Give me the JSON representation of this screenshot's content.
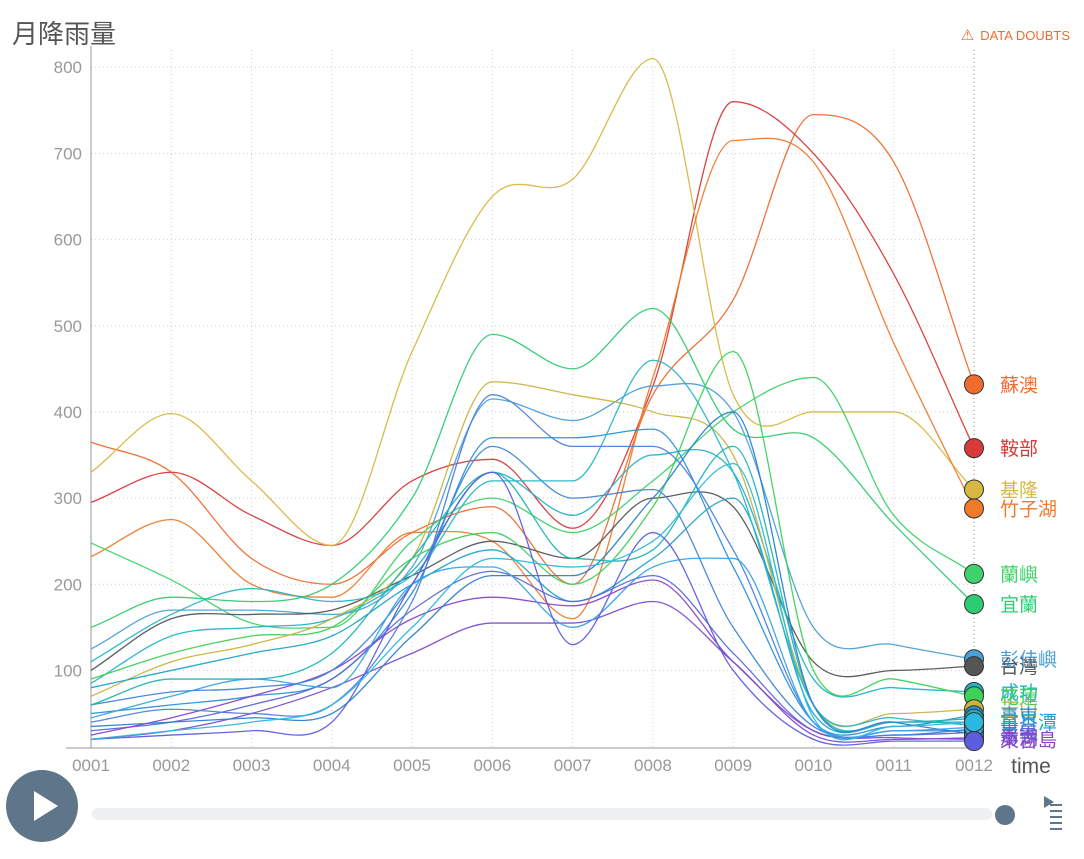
{
  "title": "月降雨量",
  "warning": {
    "label": "DATA DOUBTS",
    "icon": "warning-triangle-icon",
    "color": "#ef6c2f"
  },
  "controls": {
    "play_icon": "play-icon",
    "speed_icon": "speed-control-icon",
    "accent": "#5f758a"
  },
  "chart_data": {
    "type": "line",
    "title": "月降雨量",
    "xlabel": "time",
    "ylabel": "",
    "categories": [
      "0001",
      "0002",
      "0003",
      "0004",
      "0005",
      "0006",
      "0007",
      "0008",
      "0009",
      "0010",
      "0011",
      "0012"
    ],
    "yticks": [
      100,
      200,
      300,
      400,
      500,
      600,
      700,
      800
    ],
    "ylim": [
      10,
      820
    ],
    "grid": true,
    "series": [
      {
        "name": "蘇澳",
        "color": "#ef6c2f",
        "values": [
          365,
          330,
          230,
          200,
          260,
          290,
          200,
          420,
          530,
          745,
          690,
          432
        ]
      },
      {
        "name": "鞍部",
        "color": "#d93a3a",
        "values": [
          295,
          330,
          280,
          245,
          320,
          345,
          265,
          430,
          760,
          700,
          560,
          358
        ]
      },
      {
        "name": "基隆",
        "color": "#d6b842",
        "values": [
          330,
          398,
          320,
          245,
          470,
          650,
          670,
          810,
          420,
          400,
          400,
          310
        ]
      },
      {
        "name": "竹子湖",
        "color": "#ef7a2a",
        "values": [
          232,
          275,
          200,
          185,
          260,
          250,
          160,
          440,
          715,
          690,
          480,
          288
        ]
      },
      {
        "name": "蘭嶼",
        "color": "#3fd16a",
        "values": [
          248,
          205,
          155,
          150,
          250,
          300,
          260,
          320,
          400,
          440,
          280,
          212
        ]
      },
      {
        "name": "宜蘭",
        "color": "#2ecc71",
        "values": [
          150,
          185,
          180,
          200,
          300,
          490,
          450,
          520,
          380,
          370,
          270,
          177
        ]
      },
      {
        "name": "彭佳嶼",
        "color": "#4aa0d8",
        "values": [
          125,
          170,
          170,
          165,
          220,
          415,
          390,
          430,
          400,
          150,
          130,
          113
        ]
      },
      {
        "name": "台灣",
        "color": "#555555",
        "values": [
          100,
          160,
          165,
          170,
          210,
          250,
          230,
          300,
          290,
          110,
          100,
          105
        ]
      },
      {
        "name": "成功",
        "color": "#22b3c7",
        "values": [
          85,
          140,
          150,
          160,
          215,
          330,
          280,
          350,
          330,
          90,
          80,
          75
        ]
      },
      {
        "name": "花蓮",
        "color": "#3ed158",
        "values": [
          90,
          120,
          140,
          150,
          230,
          260,
          200,
          290,
          470,
          100,
          90,
          70
        ]
      },
      {
        "name": "玉山",
        "color": "#c7b441",
        "values": [
          70,
          110,
          130,
          160,
          230,
          435,
          420,
          400,
          350,
          60,
          50,
          55
        ]
      },
      {
        "name": "臺東",
        "color": "#2b8fd6",
        "values": [
          50,
          60,
          70,
          90,
          190,
          370,
          370,
          380,
          220,
          40,
          35,
          48
        ]
      },
      {
        "name": "日月潭",
        "color": "#1fa3c9",
        "values": [
          80,
          100,
          120,
          140,
          200,
          240,
          180,
          230,
          300,
          50,
          40,
          40
        ]
      },
      {
        "name": "嘉義",
        "color": "#5b68d9",
        "values": [
          30,
          40,
          60,
          90,
          170,
          215,
          180,
          210,
          120,
          30,
          25,
          28
        ]
      },
      {
        "name": "澎湖",
        "color": "#7a4ed0",
        "values": [
          20,
          30,
          50,
          80,
          120,
          155,
          155,
          180,
          110,
          25,
          20,
          22
        ]
      },
      {
        "name": "東吉島",
        "color": "#8b44c9",
        "values": [
          25,
          45,
          70,
          100,
          160,
          185,
          175,
          205,
          110,
          30,
          22,
          20
        ]
      },
      {
        "name": "",
        "color": "#3d85d9",
        "values": [
          60,
          75,
          80,
          100,
          200,
          360,
          300,
          310,
          150,
          35,
          25,
          32
        ]
      },
      {
        "name": "",
        "color": "#26b6c4",
        "values": [
          110,
          165,
          195,
          180,
          210,
          320,
          320,
          460,
          330,
          60,
          45,
          36
        ]
      },
      {
        "name": "",
        "color": "#4d7fe0",
        "values": [
          40,
          55,
          50,
          60,
          180,
          420,
          360,
          360,
          240,
          40,
          30,
          30
        ]
      },
      {
        "name": "",
        "color": "#1db5b0",
        "values": [
          60,
          90,
          90,
          120,
          230,
          330,
          230,
          240,
          360,
          60,
          40,
          44
        ]
      },
      {
        "name": "",
        "color": "#2d7fce",
        "values": [
          35,
          40,
          45,
          50,
          140,
          210,
          210,
          300,
          400,
          60,
          40,
          26
        ]
      },
      {
        "name": "",
        "color": "#36a3e3",
        "values": [
          45,
          70,
          90,
          80,
          200,
          220,
          150,
          220,
          230,
          40,
          30,
          34
        ]
      },
      {
        "name": "",
        "color": "#5d5ede",
        "values": [
          20,
          25,
          30,
          40,
          200,
          330,
          130,
          260,
          100,
          20,
          18,
          18
        ]
      },
      {
        "name": "",
        "color": "#2bb8e0",
        "values": [
          20,
          30,
          40,
          60,
          150,
          230,
          220,
          250,
          340,
          45,
          35,
          40
        ]
      }
    ]
  }
}
